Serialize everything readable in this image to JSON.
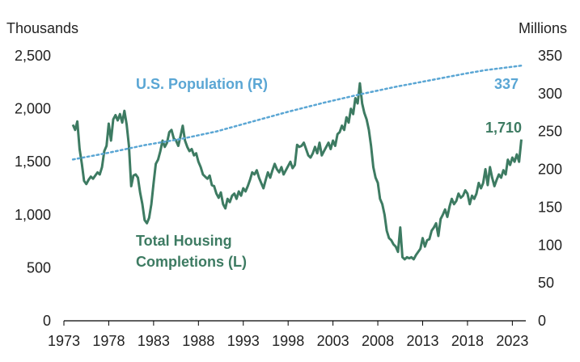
{
  "chart_data": {
    "type": "line",
    "left_axis": {
      "unit_label": "Thousands",
      "range": [
        0,
        2500
      ],
      "ticks": [
        "0",
        "500",
        "1,000",
        "1,500",
        "2,000",
        "2,500"
      ]
    },
    "right_axis": {
      "unit_label": "Millions",
      "range": [
        0,
        350
      ],
      "ticks": [
        "0",
        "50",
        "100",
        "150",
        "200",
        "250",
        "300",
        "350"
      ]
    },
    "x_axis": {
      "range": [
        1973,
        2024.5
      ],
      "ticks": [
        "1973",
        "1978",
        "1983",
        "1988",
        "1993",
        "1998",
        "2003",
        "2008",
        "2013",
        "2018",
        "2023"
      ]
    },
    "series": [
      {
        "name": "Total Housing Completions (L)",
        "label_lines": [
          "Total Housing",
          "Completions (L)"
        ],
        "axis": "left",
        "color": "#3d7b62",
        "end_label": "1,710",
        "points": [
          [
            1974.0,
            1850
          ],
          [
            1974.25,
            1800
          ],
          [
            1974.5,
            1880
          ],
          [
            1974.75,
            1620
          ],
          [
            1975.0,
            1480
          ],
          [
            1975.25,
            1320
          ],
          [
            1975.5,
            1290
          ],
          [
            1975.75,
            1330
          ],
          [
            1976.0,
            1360
          ],
          [
            1976.25,
            1340
          ],
          [
            1976.5,
            1370
          ],
          [
            1976.75,
            1400
          ],
          [
            1977.0,
            1380
          ],
          [
            1977.25,
            1450
          ],
          [
            1977.5,
            1600
          ],
          [
            1977.75,
            1650
          ],
          [
            1978.0,
            1860
          ],
          [
            1978.25,
            1700
          ],
          [
            1978.5,
            1900
          ],
          [
            1978.75,
            1940
          ],
          [
            1979.0,
            1890
          ],
          [
            1979.25,
            1950
          ],
          [
            1979.5,
            1870
          ],
          [
            1979.75,
            1980
          ],
          [
            1980.0,
            1850
          ],
          [
            1980.25,
            1650
          ],
          [
            1980.5,
            1270
          ],
          [
            1980.75,
            1370
          ],
          [
            1981.0,
            1380
          ],
          [
            1981.25,
            1350
          ],
          [
            1981.5,
            1210
          ],
          [
            1981.75,
            1100
          ],
          [
            1982.0,
            950
          ],
          [
            1982.25,
            920
          ],
          [
            1982.5,
            970
          ],
          [
            1982.75,
            1100
          ],
          [
            1983.0,
            1300
          ],
          [
            1983.25,
            1480
          ],
          [
            1983.5,
            1520
          ],
          [
            1983.75,
            1600
          ],
          [
            1984.0,
            1700
          ],
          [
            1984.25,
            1640
          ],
          [
            1984.5,
            1680
          ],
          [
            1984.75,
            1780
          ],
          [
            1985.0,
            1800
          ],
          [
            1985.25,
            1720
          ],
          [
            1985.5,
            1700
          ],
          [
            1985.75,
            1650
          ],
          [
            1986.0,
            1740
          ],
          [
            1986.25,
            1840
          ],
          [
            1986.5,
            1700
          ],
          [
            1986.75,
            1640
          ],
          [
            1987.0,
            1600
          ],
          [
            1987.25,
            1620
          ],
          [
            1987.5,
            1560
          ],
          [
            1987.75,
            1580
          ],
          [
            1988.0,
            1500
          ],
          [
            1988.25,
            1450
          ],
          [
            1988.5,
            1380
          ],
          [
            1988.75,
            1360
          ],
          [
            1989.0,
            1340
          ],
          [
            1989.25,
            1370
          ],
          [
            1989.5,
            1280
          ],
          [
            1989.75,
            1270
          ],
          [
            1990.0,
            1200
          ],
          [
            1990.25,
            1160
          ],
          [
            1990.5,
            1210
          ],
          [
            1990.75,
            1100
          ],
          [
            1991.0,
            1060
          ],
          [
            1991.25,
            1150
          ],
          [
            1991.5,
            1120
          ],
          [
            1991.75,
            1180
          ],
          [
            1992.0,
            1200
          ],
          [
            1992.25,
            1150
          ],
          [
            1992.5,
            1220
          ],
          [
            1992.75,
            1180
          ],
          [
            1993.0,
            1250
          ],
          [
            1993.25,
            1220
          ],
          [
            1993.5,
            1270
          ],
          [
            1993.75,
            1330
          ],
          [
            1994.0,
            1400
          ],
          [
            1994.25,
            1380
          ],
          [
            1994.5,
            1420
          ],
          [
            1994.75,
            1350
          ],
          [
            1995.0,
            1300
          ],
          [
            1995.25,
            1250
          ],
          [
            1995.5,
            1330
          ],
          [
            1995.75,
            1400
          ],
          [
            1996.0,
            1350
          ],
          [
            1996.25,
            1420
          ],
          [
            1996.5,
            1480
          ],
          [
            1996.75,
            1430
          ],
          [
            1997.0,
            1400
          ],
          [
            1997.25,
            1450
          ],
          [
            1997.5,
            1380
          ],
          [
            1997.75,
            1420
          ],
          [
            1998.0,
            1460
          ],
          [
            1998.25,
            1500
          ],
          [
            1998.5,
            1440
          ],
          [
            1998.75,
            1470
          ],
          [
            1999.0,
            1660
          ],
          [
            1999.25,
            1640
          ],
          [
            1999.5,
            1650
          ],
          [
            1999.75,
            1680
          ],
          [
            2000.0,
            1620
          ],
          [
            2000.25,
            1560
          ],
          [
            2000.5,
            1540
          ],
          [
            2000.75,
            1580
          ],
          [
            2001.0,
            1640
          ],
          [
            2001.25,
            1580
          ],
          [
            2001.5,
            1680
          ],
          [
            2001.75,
            1560
          ],
          [
            2002.0,
            1600
          ],
          [
            2002.25,
            1640
          ],
          [
            2002.5,
            1680
          ],
          [
            2002.75,
            1620
          ],
          [
            2003.0,
            1700
          ],
          [
            2003.25,
            1650
          ],
          [
            2003.5,
            1760
          ],
          [
            2003.75,
            1780
          ],
          [
            2004.0,
            1840
          ],
          [
            2004.25,
            1800
          ],
          [
            2004.5,
            1920
          ],
          [
            2004.75,
            1870
          ],
          [
            2005.0,
            2000
          ],
          [
            2005.25,
            1950
          ],
          [
            2005.5,
            2100
          ],
          [
            2005.75,
            2050
          ],
          [
            2006.0,
            2240
          ],
          [
            2006.25,
            2050
          ],
          [
            2006.5,
            1960
          ],
          [
            2006.75,
            1900
          ],
          [
            2007.0,
            1800
          ],
          [
            2007.25,
            1650
          ],
          [
            2007.5,
            1450
          ],
          [
            2007.75,
            1350
          ],
          [
            2008.0,
            1300
          ],
          [
            2008.25,
            1150
          ],
          [
            2008.5,
            1100
          ],
          [
            2008.75,
            1000
          ],
          [
            2009.0,
            850
          ],
          [
            2009.25,
            780
          ],
          [
            2009.5,
            760
          ],
          [
            2009.75,
            720
          ],
          [
            2010.0,
            700
          ],
          [
            2010.25,
            650
          ],
          [
            2010.5,
            880
          ],
          [
            2010.75,
            600
          ],
          [
            2011.0,
            580
          ],
          [
            2011.25,
            600
          ],
          [
            2011.5,
            590
          ],
          [
            2011.75,
            600
          ],
          [
            2012.0,
            580
          ],
          [
            2012.25,
            620
          ],
          [
            2012.5,
            650
          ],
          [
            2012.75,
            680
          ],
          [
            2013.0,
            780
          ],
          [
            2013.25,
            700
          ],
          [
            2013.5,
            760
          ],
          [
            2013.75,
            770
          ],
          [
            2014.0,
            850
          ],
          [
            2014.25,
            880
          ],
          [
            2014.5,
            920
          ],
          [
            2014.75,
            800
          ],
          [
            2015.0,
            960
          ],
          [
            2015.25,
            1000
          ],
          [
            2015.5,
            1050
          ],
          [
            2015.75,
            980
          ],
          [
            2016.0,
            1080
          ],
          [
            2016.25,
            1150
          ],
          [
            2016.5,
            1100
          ],
          [
            2016.75,
            1130
          ],
          [
            2017.0,
            1200
          ],
          [
            2017.25,
            1160
          ],
          [
            2017.5,
            1180
          ],
          [
            2017.75,
            1230
          ],
          [
            2018.0,
            1200
          ],
          [
            2018.25,
            1100
          ],
          [
            2018.5,
            1180
          ],
          [
            2018.75,
            1150
          ],
          [
            2019.0,
            1200
          ],
          [
            2019.25,
            1300
          ],
          [
            2019.5,
            1250
          ],
          [
            2019.75,
            1300
          ],
          [
            2020.0,
            1430
          ],
          [
            2020.25,
            1280
          ],
          [
            2020.5,
            1450
          ],
          [
            2020.75,
            1350
          ],
          [
            2021.0,
            1270
          ],
          [
            2021.25,
            1330
          ],
          [
            2021.5,
            1380
          ],
          [
            2021.75,
            1350
          ],
          [
            2022.0,
            1420
          ],
          [
            2022.25,
            1380
          ],
          [
            2022.5,
            1520
          ],
          [
            2022.75,
            1470
          ],
          [
            2023.0,
            1540
          ],
          [
            2023.25,
            1500
          ],
          [
            2023.5,
            1570
          ],
          [
            2023.75,
            1500
          ],
          [
            2024.0,
            1710
          ]
        ]
      },
      {
        "name": "U.S. Population (R)",
        "label_lines": [
          "U.S. Population (R)"
        ],
        "axis": "right",
        "color": "#5aa6d4",
        "end_label": "337",
        "points": [
          [
            1974,
            213
          ],
          [
            1978,
            222
          ],
          [
            1982,
            232
          ],
          [
            1986,
            240
          ],
          [
            1990,
            250
          ],
          [
            1994,
            263
          ],
          [
            1998,
            276
          ],
          [
            2002,
            288
          ],
          [
            2006,
            299
          ],
          [
            2010,
            309
          ],
          [
            2014,
            318
          ],
          [
            2018,
            327
          ],
          [
            2020,
            331
          ],
          [
            2022,
            334
          ],
          [
            2024,
            337
          ]
        ]
      }
    ]
  }
}
